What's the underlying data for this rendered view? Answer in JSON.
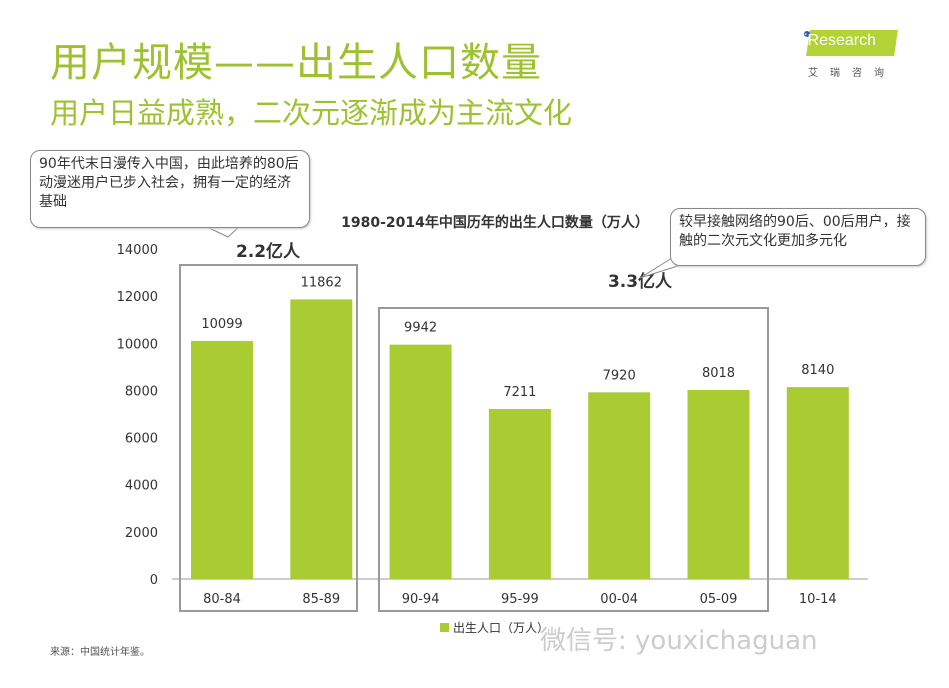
{
  "header": {
    "title": "用户规模——出生人口数量",
    "subtitle": "用户日益成熟，二次元逐渐成为主流文化"
  },
  "logo": {
    "name": "iResearch",
    "cn": "艾瑞咨询"
  },
  "callouts": [
    "90年代末日漫传入中国，由此培养的80后动漫迷用户已步入社会，拥有一定的经济基础",
    "较早接触网络的90后、00后用户，接触的二次元文化更加多元化"
  ],
  "group_labels": [
    "2.2亿人",
    "3.3亿人"
  ],
  "source": "来源：中国统计年鉴。",
  "watermark": "微信号: youxichaguan",
  "colors": {
    "bar": "#a9cc33",
    "title": "#9dc22f"
  },
  "chart_data": {
    "type": "bar",
    "title": "1980-2014年中国历年的出生人口数量（万人）",
    "categories": [
      "80-84",
      "85-89",
      "90-94",
      "95-99",
      "00-04",
      "05-09",
      "10-14"
    ],
    "series": [
      {
        "name": "出生人口（万人）",
        "values": [
          10099,
          11862,
          9942,
          7211,
          7920,
          8018,
          8140
        ]
      }
    ],
    "ylim": [
      0,
      14000
    ],
    "yticks": [
      "0",
      "2000",
      "4000",
      "6000",
      "8000",
      "10000",
      "12000",
      "14000"
    ],
    "grid": false,
    "legend": "bottom"
  }
}
